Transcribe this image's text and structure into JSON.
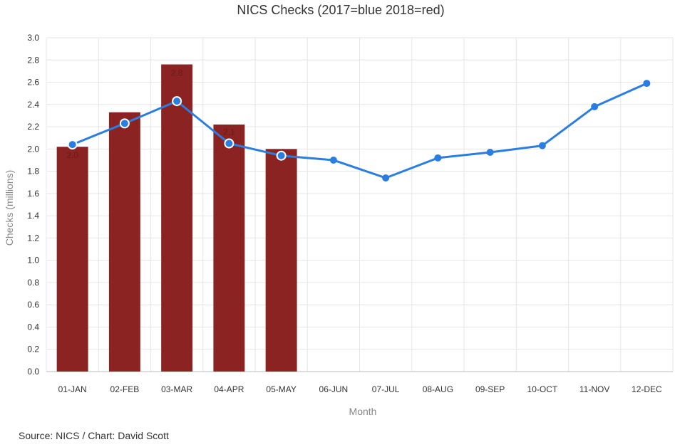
{
  "chart_data": {
    "type": "bar",
    "title": "NICS Checks (2017=blue 2018=red)",
    "xlabel": "Month",
    "ylabel": "Checks (millions)",
    "ylim": [
      0,
      3.0
    ],
    "yticks": [
      "0.0",
      "0.2",
      "0.4",
      "0.6",
      "0.8",
      "1.0",
      "1.2",
      "1.4",
      "1.6",
      "1.8",
      "2.0",
      "2.2",
      "2.4",
      "2.6",
      "2.8",
      "3.0"
    ],
    "categories": [
      "01-JAN",
      "02-FEB",
      "03-MAR",
      "04-APR",
      "05-MAY",
      "06-JUN",
      "07-JUL",
      "08-AUG",
      "09-SEP",
      "10-OCT",
      "11-NOV",
      "12-DEC"
    ],
    "grid": true,
    "series": [
      {
        "type": "bar",
        "color": "#8b2323",
        "values": [
          2.02,
          2.33,
          2.76,
          2.22,
          2.0,
          null,
          null,
          null,
          null,
          null,
          null,
          null
        ],
        "data_labels": [
          "2.0",
          null,
          "2.8",
          null,
          null,
          null,
          null,
          null,
          null,
          null,
          null,
          null
        ]
      },
      {
        "type": "line",
        "color": "#2a7de1",
        "values": [
          2.04,
          2.23,
          2.43,
          2.05,
          1.94,
          1.9,
          1.74,
          1.92,
          1.97,
          2.03,
          2.38,
          2.59
        ],
        "data_labels": [
          null,
          null,
          null,
          "2.1",
          null,
          null,
          null,
          null,
          null,
          null,
          null,
          null
        ]
      }
    ]
  },
  "source": "Source: NICS / Chart: David Scott"
}
